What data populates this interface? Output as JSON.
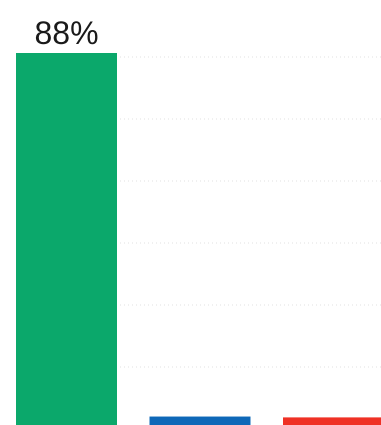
{
  "chart_data": {
    "type": "bar",
    "title": "",
    "xlabel": "",
    "ylabel": "",
    "categories": [
      "",
      "",
      ""
    ],
    "values": [
      88,
      2,
      1.8
    ],
    "data_labels": [
      "88%",
      "",
      ""
    ],
    "colors": [
      "#0ba86b",
      "#0e68b8",
      "#ef3125"
    ],
    "ylim": [
      0,
      88
    ],
    "grid": true,
    "legend": "none"
  }
}
